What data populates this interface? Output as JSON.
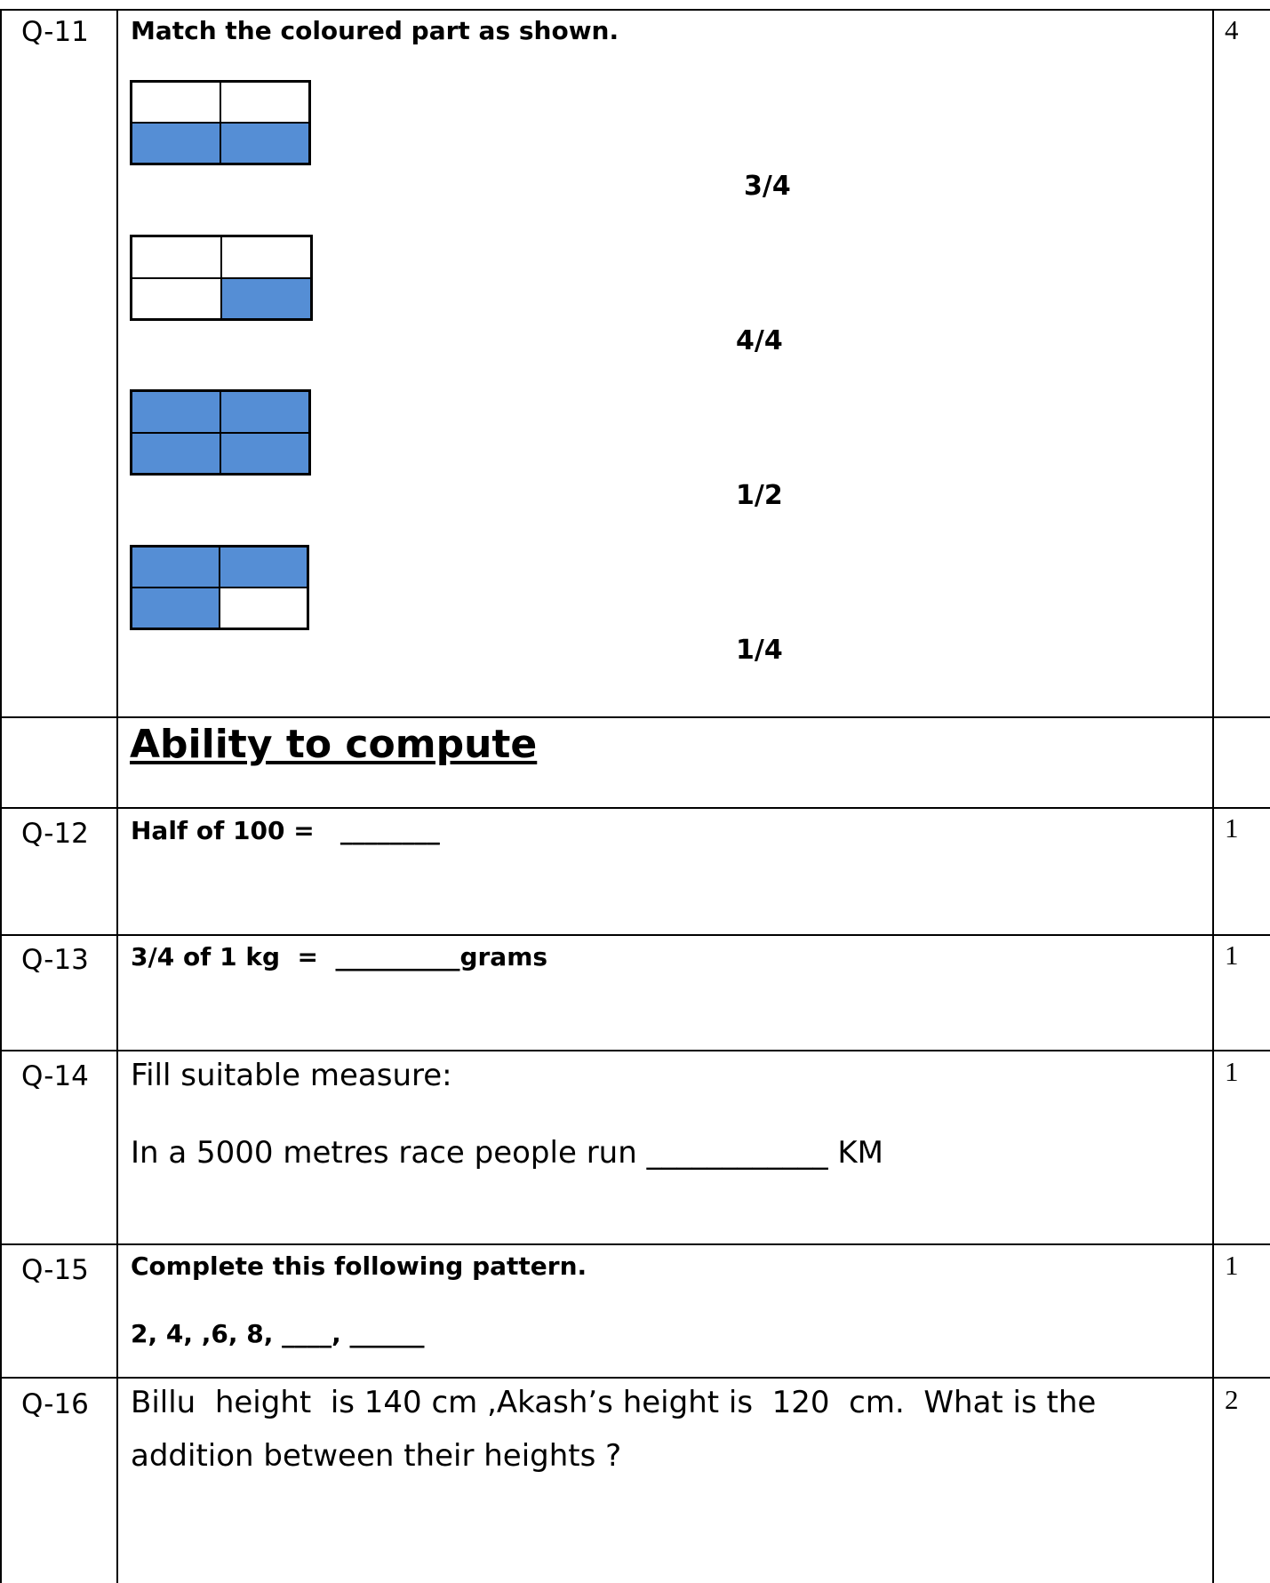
{
  "q11": {
    "number": "Q-11",
    "prompt": "Match the coloured part as shown.",
    "marks": "4",
    "figures": [
      {
        "shaded": [
          false,
          false,
          true,
          true
        ],
        "shaded_fraction": "2/4"
      },
      {
        "shaded": [
          false,
          false,
          false,
          true
        ],
        "shaded_fraction": "1/4"
      },
      {
        "shaded": [
          true,
          true,
          true,
          true
        ],
        "shaded_fraction": "4/4"
      },
      {
        "shaded": [
          true,
          true,
          true,
          false
        ],
        "shaded_fraction": "3/4"
      }
    ],
    "options": [
      "3/4",
      "4/4",
      "1/2",
      "1/4"
    ],
    "shade_color": "#558ed5"
  },
  "section_heading": "Ability to compute",
  "q12": {
    "number": "Q-12",
    "text": "Half of 100 =   ________",
    "marks": "1"
  },
  "q13": {
    "number": "Q-13",
    "text": "3/4 of 1 kg  =  __________grams",
    "marks": "1"
  },
  "q14": {
    "number": "Q-14",
    "line1": "Fill suitable measure:",
    "line2": "In a 5000 metres race people run ____________ KM",
    "marks": "1"
  },
  "q15": {
    "number": "Q-15",
    "line1": "Complete this following pattern.",
    "line2": "2, 4, ,6, 8, ____, ______",
    "marks": "1"
  },
  "q16": {
    "number": "Q-16",
    "line1": "Billu  height  is 140 cm ,Akash’s height is  120  cm.  What is the",
    "line2": "addition between their heights ?",
    "marks": "2"
  }
}
